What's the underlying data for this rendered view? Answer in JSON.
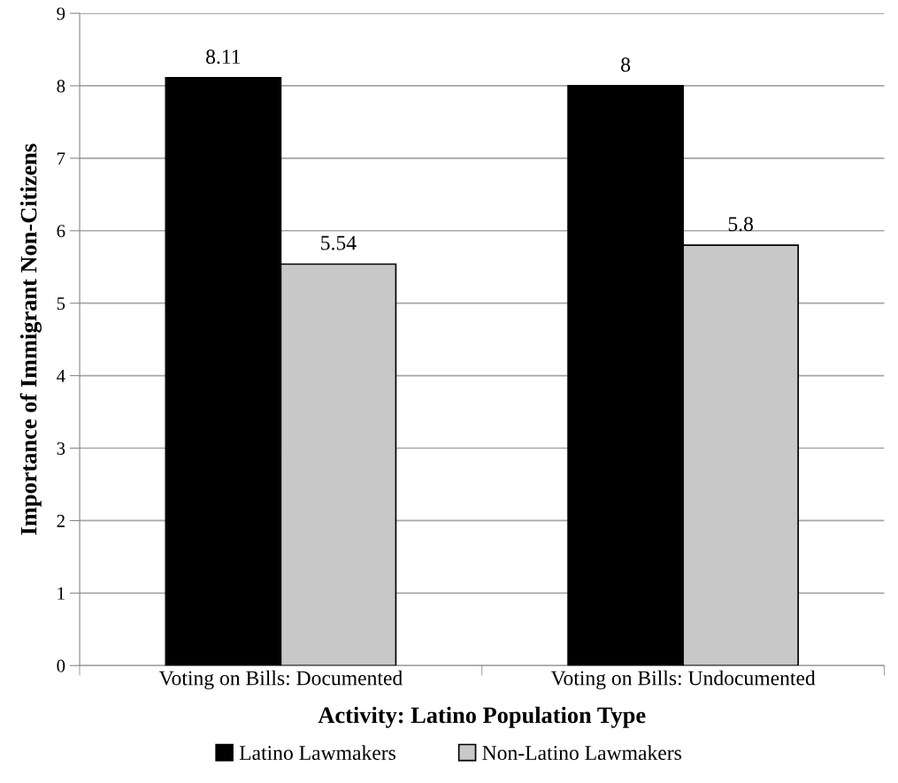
{
  "chart_data": {
    "type": "bar",
    "xlabel": "Activity: Latino Population Type",
    "ylabel": "Importance of Immigrant Non-Citizens",
    "categories": [
      "Voting on Bills: Documented",
      "Voting on Bills: Undocumented"
    ],
    "series": [
      {
        "name": "Latino Lawmakers",
        "color": "#000000",
        "values": [
          8.11,
          8
        ]
      },
      {
        "name": "Non-Latino Lawmakers",
        "color": "#c8c8c8",
        "values": [
          5.54,
          5.8
        ]
      }
    ],
    "ylim": [
      0,
      9
    ],
    "yticks": [
      0,
      1,
      2,
      3,
      4,
      5,
      6,
      7,
      8,
      9
    ],
    "grid": "y",
    "legend": "bottom",
    "data_labels": true
  }
}
